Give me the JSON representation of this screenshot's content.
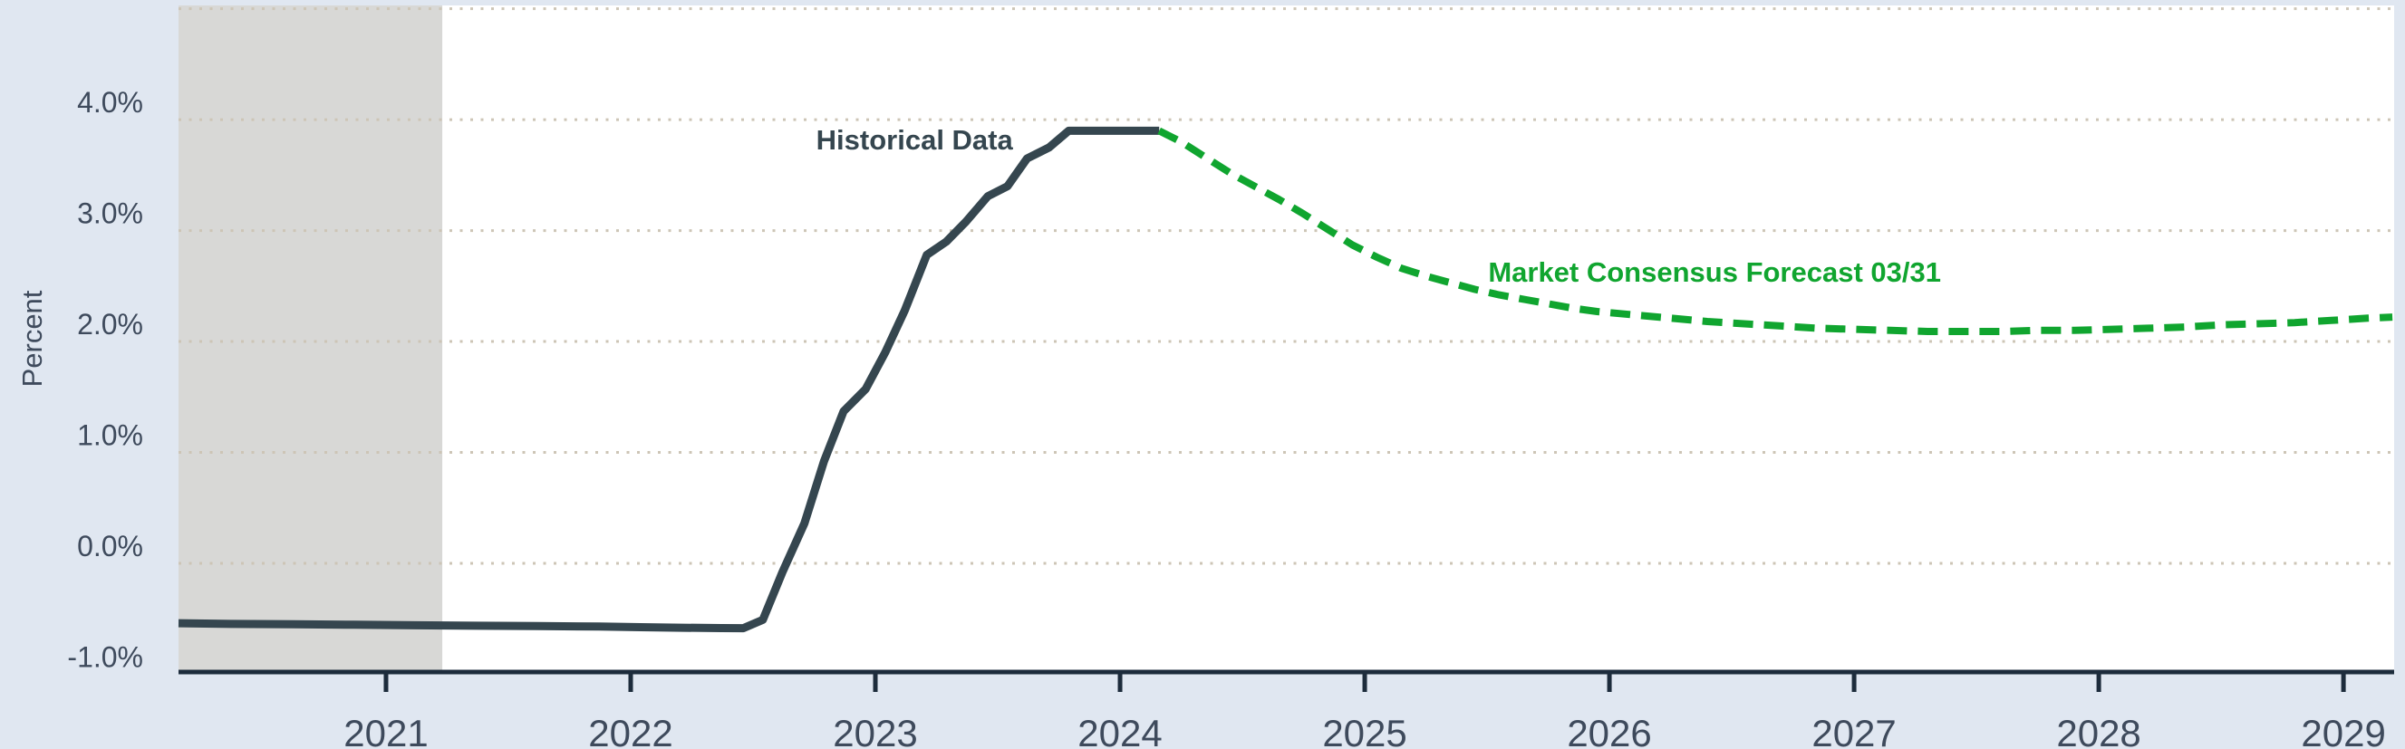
{
  "chart_data": {
    "type": "line",
    "title": "",
    "xlabel": "",
    "ylabel": "Percent",
    "grid": true,
    "xlim": [
      2020.152,
      2029.207
    ],
    "ylim": [
      -0.98,
      5.03
    ],
    "x_tick_values": [
      2021,
      2022,
      2023,
      2024,
      2025,
      2026,
      2027,
      2028,
      2029
    ],
    "x_tick_labels": [
      "2021",
      "2022",
      "2023",
      "2024",
      "2025",
      "2026",
      "2027",
      "2028",
      "2029"
    ],
    "y_tick_values": [
      4.0,
      3.0,
      2.0,
      1.0,
      0.0,
      -1.0
    ],
    "y_tick_labels": [
      "4.0%",
      "3.0%",
      "2.0%",
      "1.0%",
      "0.0%",
      "-1.0%"
    ],
    "grid_values": [
      5.0,
      4.0,
      3.0,
      2.0,
      1.0,
      0.0
    ],
    "shaded_region": {
      "x_start": 2020.152,
      "x_end": 2021.23
    },
    "series": [
      {
        "name": "Historical Data",
        "style": "solid",
        "color_key": "historical",
        "x": [
          2020.152,
          2020.37,
          2020.62,
          2020.87,
          2021.12,
          2021.37,
          2021.62,
          2021.87,
          2022.04,
          2022.21,
          2022.37,
          2022.46,
          2022.54,
          2022.62,
          2022.71,
          2022.79,
          2022.87,
          2022.96,
          2023.04,
          2023.12,
          2023.21,
          2023.29,
          2023.37,
          2023.46,
          2023.54,
          2023.62,
          2023.71,
          2023.79,
          2023.87,
          2023.96,
          2024.04,
          2024.16
        ],
        "y": [
          -0.54,
          -0.546,
          -0.55,
          -0.554,
          -0.559,
          -0.563,
          -0.566,
          -0.57,
          -0.576,
          -0.581,
          -0.584,
          -0.585,
          -0.51,
          -0.08,
          0.36,
          0.92,
          1.37,
          1.57,
          1.9,
          2.28,
          2.78,
          2.9,
          3.08,
          3.31,
          3.4,
          3.65,
          3.75,
          3.9,
          3.9,
          3.9,
          3.9,
          3.9
        ]
      },
      {
        "name": "Market Consensus Forecast 03/31",
        "style": "dashed",
        "color_key": "forecast",
        "x": [
          2024.16,
          2024.25,
          2024.35,
          2024.45,
          2024.55,
          2024.65,
          2024.75,
          2024.85,
          2024.95,
          2025.05,
          2025.15,
          2025.25,
          2025.35,
          2025.45,
          2025.55,
          2025.65,
          2025.75,
          2025.85,
          2025.95,
          2026.1,
          2026.25,
          2026.4,
          2026.55,
          2026.7,
          2026.85,
          2027.0,
          2027.15,
          2027.3,
          2027.45,
          2027.6,
          2027.75,
          2027.9,
          2028.05,
          2028.2,
          2028.35,
          2028.5,
          2028.65,
          2028.8,
          2028.95,
          2029.1,
          2029.2
        ],
        "y": [
          3.9,
          3.8,
          3.66,
          3.52,
          3.4,
          3.28,
          3.15,
          3.01,
          2.87,
          2.76,
          2.66,
          2.59,
          2.53,
          2.47,
          2.42,
          2.38,
          2.34,
          2.3,
          2.27,
          2.24,
          2.21,
          2.18,
          2.16,
          2.14,
          2.12,
          2.11,
          2.1,
          2.09,
          2.09,
          2.09,
          2.1,
          2.1,
          2.11,
          2.12,
          2.13,
          2.15,
          2.16,
          2.17,
          2.19,
          2.21,
          2.22
        ]
      }
    ],
    "annotations": [
      {
        "text": "Historical Data",
        "x": 2023.16,
        "y": 3.82,
        "color_key": "historical"
      },
      {
        "text": "Market Consensus Forecast 03/31",
        "x": 2026.43,
        "y": 2.63,
        "color_key": "forecast"
      }
    ],
    "legend_position": "none",
    "colors": {
      "background": "#e0e7f1",
      "plot_background": "#ffffff",
      "shaded_region": "#d8d8d6",
      "gridline": "#cdc5b6",
      "axis": "#1d2c3c",
      "tick_label": "#3e4a5c",
      "historical": "#35464f",
      "forecast": "#10a52f"
    }
  }
}
